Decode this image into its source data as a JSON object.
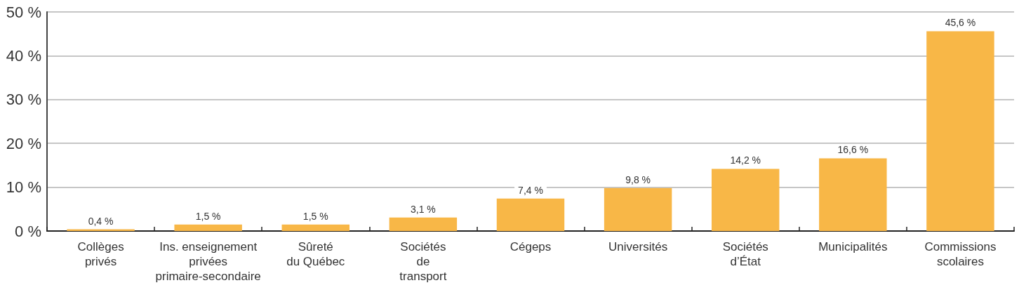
{
  "chart_data": {
    "type": "bar",
    "categories": [
      "Collèges\nprivés",
      "Ins. enseignement\nprivées\nprimaire-secondaire",
      "Sûreté\ndu Québec",
      "Sociétés\nde\ntransport",
      "Cégeps",
      "Universités",
      "Sociétés\nd’État",
      "Municipalités",
      "Commissions\nscolaires"
    ],
    "values": [
      0.4,
      1.5,
      1.5,
      3.1,
      7.4,
      9.8,
      14.2,
      16.6,
      45.6
    ],
    "value_labels": [
      "0,4 %",
      "1,5 %",
      "1,5 %",
      "3,1 %",
      "7,4 %",
      "9,8 %",
      "14,2 %",
      "16,6 %",
      "45,6 %"
    ],
    "color": "#f8b747",
    "ylim": [
      0,
      50
    ],
    "yticks": [
      {
        "value": 0,
        "label": "0 %"
      },
      {
        "value": 10,
        "label": "10 %"
      },
      {
        "value": 20,
        "label": "20 %"
      },
      {
        "value": 30,
        "label": "30 %"
      },
      {
        "value": 40,
        "label": "40 %"
      },
      {
        "value": 50,
        "label": "50 %"
      }
    ],
    "grid": "y"
  }
}
